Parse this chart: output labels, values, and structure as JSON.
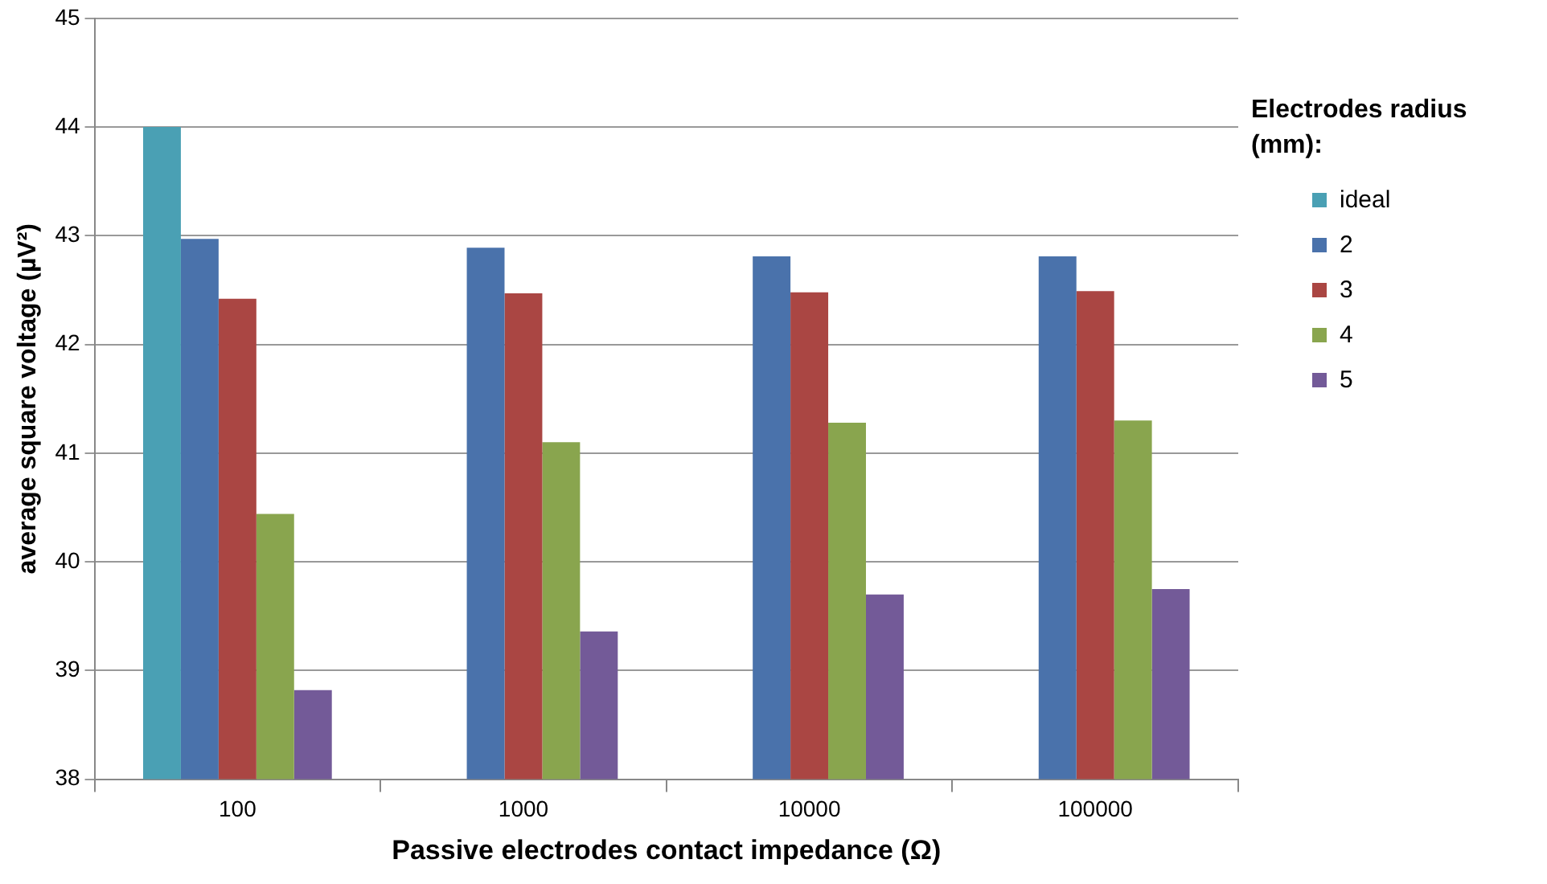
{
  "chart_data": {
    "type": "bar",
    "xlabel": "Passive electrodes contact impedance (Ω)",
    "ylabel": "average square voltage (µV²)",
    "legend_title": "Electrodes radius (mm):",
    "categories": [
      "100",
      "1000",
      "10000",
      "100000"
    ],
    "series": [
      {
        "name": "ideal",
        "color": "#4aa0b4",
        "values": [
          44,
          null,
          null,
          null
        ]
      },
      {
        "name": "2",
        "color": "#4a72ab",
        "values": [
          42.97,
          42.89,
          42.81,
          42.81
        ]
      },
      {
        "name": "3",
        "color": "#aa4643",
        "values": [
          42.42,
          42.47,
          42.48,
          42.49
        ]
      },
      {
        "name": "4",
        "color": "#89a54e",
        "values": [
          40.44,
          41.1,
          41.28,
          41.3
        ]
      },
      {
        "name": "5",
        "color": "#735a98",
        "values": [
          38.82,
          39.36,
          39.7,
          39.75
        ]
      }
    ],
    "ylim": [
      38,
      45
    ],
    "yticks": [
      38,
      39,
      40,
      41,
      42,
      43,
      44,
      45
    ],
    "grid": "y",
    "legend": "right"
  }
}
